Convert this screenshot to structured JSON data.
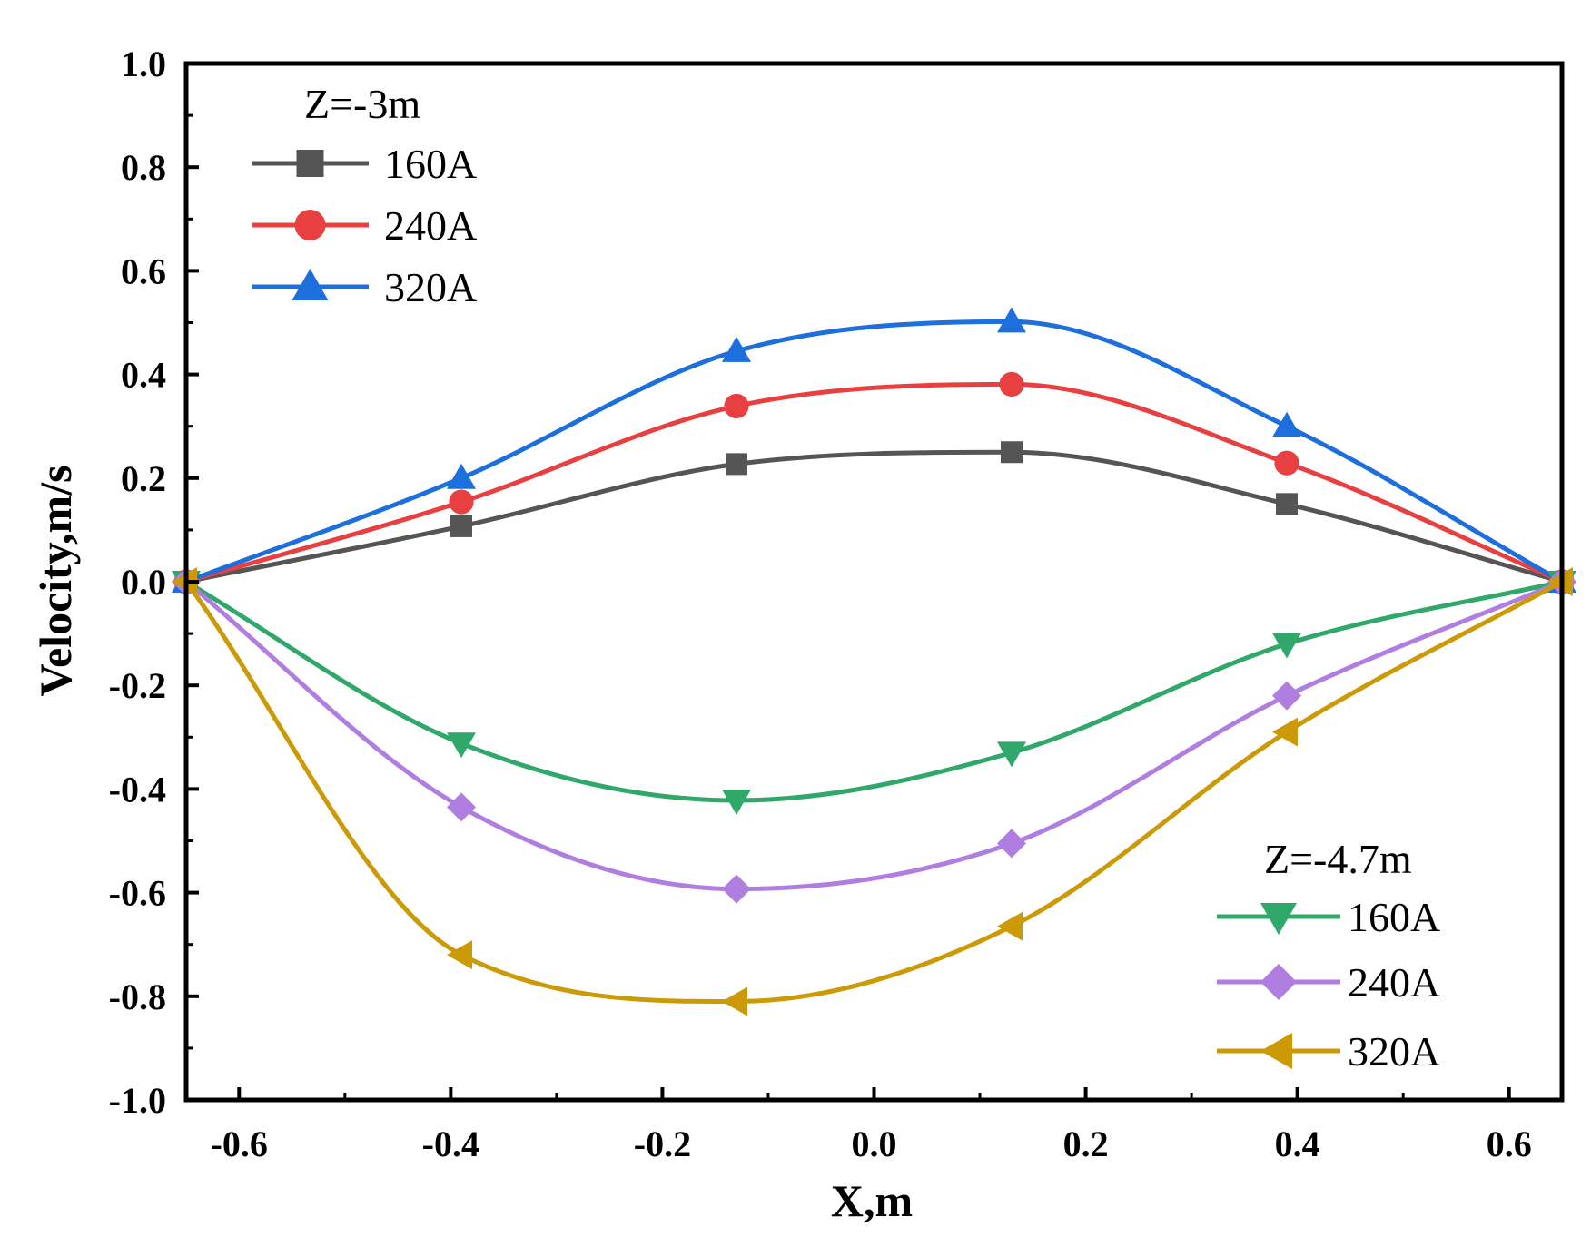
{
  "chart_data": {
    "type": "line",
    "xlabel": "X,m",
    "ylabel": "Velocity,m/s",
    "xlim": [
      -0.65,
      0.65
    ],
    "ylim": [
      -1.0,
      1.0
    ],
    "xticks": [
      -0.6,
      -0.4,
      -0.2,
      0.0,
      0.2,
      0.4,
      0.6
    ],
    "xtick_labels": [
      "-0.6",
      "-0.4",
      "-0.2",
      "0.0",
      "0.2",
      "0.4",
      "0.6"
    ],
    "yticks": [
      1.0,
      0.8,
      0.6,
      0.4,
      0.2,
      0.0,
      -0.2,
      -0.4,
      -0.6,
      -0.8,
      -1.0
    ],
    "ytick_labels": [
      "1.0",
      "0.8",
      "0.6",
      "0.4",
      "0.2",
      "0.0",
      "-0.2",
      "-0.4",
      "-0.6",
      "-0.8",
      "-1.0"
    ],
    "legend_groups": [
      {
        "title": "Z=-3m",
        "position": "top-left",
        "series": [
          0,
          1,
          2
        ]
      },
      {
        "title": "Z=-4.7m",
        "position": "bottom-right",
        "series": [
          3,
          4,
          5
        ]
      }
    ],
    "series": [
      {
        "name": "160A",
        "group": "Z=-3m",
        "color": "#555555",
        "marker": "square",
        "x": [
          -0.65,
          -0.39,
          -0.13,
          0.13,
          0.39,
          0.65
        ],
        "y": [
          0.0,
          0.107,
          0.227,
          0.25,
          0.15,
          0.0
        ]
      },
      {
        "name": "240A",
        "group": "Z=-3m",
        "color": "#e84040",
        "marker": "circle",
        "x": [
          -0.65,
          -0.39,
          -0.13,
          0.13,
          0.39,
          0.65
        ],
        "y": [
          0.0,
          0.154,
          0.339,
          0.381,
          0.229,
          0.0
        ]
      },
      {
        "name": "320A",
        "group": "Z=-3m",
        "color": "#1c6fdc",
        "marker": "triangle-up",
        "x": [
          -0.65,
          -0.39,
          -0.13,
          0.13,
          0.39,
          0.65
        ],
        "y": [
          0.0,
          0.2,
          0.445,
          0.502,
          0.3,
          0.0
        ]
      },
      {
        "name": "160A",
        "group": "Z=-4.7m",
        "color": "#2fa86a",
        "marker": "triangle-down",
        "x": [
          -0.65,
          -0.39,
          -0.13,
          0.13,
          0.39,
          0.65
        ],
        "y": [
          0.0,
          -0.312,
          -0.422,
          -0.33,
          -0.12,
          0.0
        ]
      },
      {
        "name": "240A",
        "group": "Z=-4.7m",
        "color": "#b07ee0",
        "marker": "diamond",
        "x": [
          -0.65,
          -0.39,
          -0.13,
          0.13,
          0.39,
          0.65
        ],
        "y": [
          0.0,
          -0.435,
          -0.593,
          -0.505,
          -0.22,
          0.0
        ]
      },
      {
        "name": "320A",
        "group": "Z=-4.7m",
        "color": "#cc9a06",
        "marker": "triangle-left",
        "x": [
          -0.65,
          -0.39,
          -0.13,
          0.13,
          0.39,
          0.65
        ],
        "y": [
          0.0,
          -0.72,
          -0.81,
          -0.665,
          -0.29,
          0.0
        ]
      }
    ]
  }
}
